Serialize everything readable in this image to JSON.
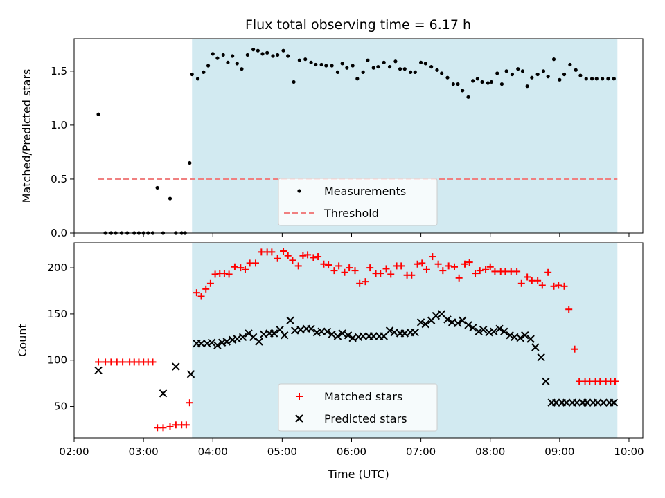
{
  "chart_data": [
    {
      "type": "scatter",
      "title": "Flux total observing time = 6.17 h",
      "ylabel": "Matched/Predicted stars",
      "xlabel": "",
      "ylim": [
        0,
        1.8
      ],
      "yticks": [
        0.0,
        0.5,
        1.0,
        1.5
      ],
      "ytick_labels": [
        "0.0",
        "0.5",
        "1.0",
        "1.5"
      ],
      "xlim": [
        "02:00",
        "10:12"
      ],
      "shaded_region": {
        "start": "03:42",
        "end": "09:50",
        "color": "#add8e6"
      },
      "threshold": {
        "name": "Threshold",
        "value": 0.5,
        "start": "02:21",
        "end": "09:50",
        "color": "#f08080",
        "style": "dashed"
      },
      "legend": {
        "position": "lower-center",
        "entries": [
          {
            "label": "Measurements"
          },
          {
            "label": "Threshold"
          }
        ]
      },
      "series": [
        {
          "name": "Measurements",
          "color": "#000000",
          "marker": "dot",
          "x": [
            "02:21",
            "02:27",
            "02:32",
            "02:36",
            "02:41",
            "02:46",
            "02:52",
            "02:56",
            "03:00",
            "03:04",
            "03:08",
            "03:12",
            "03:17",
            "03:23",
            "03:28",
            "03:33",
            "03:36",
            "03:40",
            "03:42",
            "03:47",
            "03:52",
            "03:56",
            "04:00",
            "04:04",
            "04:09",
            "04:13",
            "04:17",
            "04:21",
            "04:25",
            "04:30",
            "04:35",
            "04:39",
            "04:43",
            "04:47",
            "04:52",
            "04:56",
            "05:01",
            "05:05",
            "05:10",
            "05:15",
            "05:20",
            "05:25",
            "05:29",
            "05:34",
            "05:38",
            "05:43",
            "05:48",
            "05:52",
            "05:56",
            "06:01",
            "06:05",
            "06:10",
            "06:14",
            "06:19",
            "06:23",
            "06:28",
            "06:33",
            "06:38",
            "06:42",
            "06:46",
            "06:51",
            "06:55",
            "07:00",
            "07:04",
            "07:09",
            "07:14",
            "07:18",
            "07:23",
            "07:28",
            "07:32",
            "07:36",
            "07:41",
            "07:45",
            "07:49",
            "07:53",
            "07:58",
            "08:01",
            "08:06",
            "08:10",
            "08:14",
            "08:19",
            "08:24",
            "08:28",
            "08:32",
            "08:36",
            "08:41",
            "08:46",
            "08:50",
            "08:55",
            "09:00",
            "09:04",
            "09:09",
            "09:14",
            "09:18",
            "09:23",
            "09:28",
            "09:32",
            "09:37",
            "09:42",
            "09:47"
          ],
          "y": [
            1.1,
            0.0,
            0.0,
            0.0,
            0.0,
            0.0,
            0.0,
            0.0,
            0.0,
            0.0,
            0.0,
            0.42,
            0.0,
            0.32,
            0.0,
            0.0,
            0.0,
            0.65,
            1.47,
            1.43,
            1.49,
            1.55,
            1.66,
            1.62,
            1.65,
            1.58,
            1.64,
            1.57,
            1.52,
            1.65,
            1.7,
            1.69,
            1.66,
            1.67,
            1.64,
            1.65,
            1.69,
            1.64,
            1.4,
            1.6,
            1.61,
            1.58,
            1.56,
            1.56,
            1.55,
            1.55,
            1.49,
            1.57,
            1.53,
            1.55,
            1.43,
            1.49,
            1.6,
            1.53,
            1.54,
            1.58,
            1.54,
            1.59,
            1.52,
            1.52,
            1.49,
            1.49,
            1.58,
            1.57,
            1.54,
            1.51,
            1.48,
            1.44,
            1.38,
            1.38,
            1.32,
            1.26,
            1.41,
            1.43,
            1.4,
            1.39,
            1.4,
            1.48,
            1.38,
            1.5,
            1.47,
            1.52,
            1.5,
            1.36,
            1.44,
            1.47,
            1.5,
            1.45,
            1.61,
            1.42,
            1.47,
            1.56,
            1.51,
            1.46,
            1.43,
            1.43,
            1.43,
            1.43,
            1.43,
            1.43
          ]
        }
      ]
    },
    {
      "type": "scatter",
      "title": "",
      "ylabel": "Count",
      "xlabel": "Time (UTC)",
      "ylim": [
        16,
        227
      ],
      "yticks": [
        50,
        100,
        150,
        200
      ],
      "ytick_labels": [
        "50",
        "100",
        "150",
        "200"
      ],
      "xlim": [
        "02:00",
        "10:12"
      ],
      "xticks": [
        "02:00",
        "03:00",
        "04:00",
        "05:00",
        "06:00",
        "07:00",
        "08:00",
        "09:00",
        "10:00"
      ],
      "xtick_labels": [
        "02:00",
        "03:00",
        "04:00",
        "05:00",
        "06:00",
        "07:00",
        "08:00",
        "09:00",
        "10:00"
      ],
      "shaded_region": {
        "start": "03:42",
        "end": "09:50",
        "color": "#add8e6"
      },
      "legend": {
        "position": "lower-center",
        "entries": [
          {
            "label": "Matched stars"
          },
          {
            "label": "Predicted stars"
          }
        ]
      },
      "series": [
        {
          "name": "Matched stars",
          "color": "#ff0000",
          "marker": "plus",
          "x": [
            "02:21",
            "02:27",
            "02:32",
            "02:37",
            "02:42",
            "02:48",
            "02:52",
            "02:56",
            "03:00",
            "03:04",
            "03:08",
            "03:12",
            "03:17",
            "03:23",
            "03:28",
            "03:33",
            "03:37",
            "03:40",
            "03:46",
            "03:50",
            "03:54",
            "03:58",
            "04:02",
            "04:06",
            "04:10",
            "04:14",
            "04:19",
            "04:24",
            "04:28",
            "04:32",
            "04:37",
            "04:42",
            "04:47",
            "04:51",
            "04:56",
            "05:01",
            "05:05",
            "05:09",
            "05:14",
            "05:18",
            "05:22",
            "05:27",
            "05:31",
            "05:36",
            "05:40",
            "05:45",
            "05:49",
            "05:54",
            "05:58",
            "06:03",
            "06:07",
            "06:12",
            "06:16",
            "06:21",
            "06:25",
            "06:30",
            "06:34",
            "06:39",
            "06:43",
            "06:48",
            "06:52",
            "06:57",
            "07:01",
            "07:05",
            "07:10",
            "07:15",
            "07:19",
            "07:24",
            "07:29",
            "07:33",
            "07:38",
            "07:42",
            "07:47",
            "07:51",
            "07:56",
            "08:00",
            "08:04",
            "08:09",
            "08:13",
            "08:18",
            "08:23",
            "08:27",
            "08:32",
            "08:36",
            "08:41",
            "08:45",
            "08:50",
            "08:55",
            "08:59",
            "09:04",
            "09:08",
            "09:13",
            "09:17",
            "09:22",
            "09:26",
            "09:31",
            "09:35",
            "09:40",
            "09:44",
            "09:48"
          ],
          "y": [
            98,
            98,
            98,
            98,
            98,
            98,
            98,
            98,
            98,
            98,
            98,
            27,
            27,
            28,
            30,
            30,
            30,
            54,
            173,
            169,
            177,
            183,
            193,
            194,
            194,
            193,
            201,
            200,
            198,
            205,
            205,
            217,
            217,
            217,
            210,
            218,
            213,
            208,
            202,
            213,
            214,
            211,
            212,
            204,
            203,
            197,
            202,
            195,
            200,
            197,
            183,
            185,
            200,
            194,
            194,
            199,
            193,
            202,
            202,
            192,
            192,
            204,
            205,
            198,
            212,
            204,
            197,
            202,
            201,
            189,
            204,
            206,
            194,
            197,
            198,
            201,
            196,
            196,
            196,
            196,
            196,
            183,
            190,
            186,
            186,
            181,
            195,
            180,
            181,
            180,
            155,
            112,
            77,
            77,
            77,
            77,
            77,
            77,
            77,
            77
          ],
          "note_skip": true
        },
        {
          "name": "Predicted stars",
          "color": "#000000",
          "marker": "x",
          "x": [
            "02:21",
            "03:17",
            "03:28",
            "03:41",
            "03:46",
            "03:50",
            "03:55",
            "03:59",
            "04:04",
            "04:08",
            "04:12",
            "04:17",
            "04:21",
            "04:26",
            "04:31",
            "04:35",
            "04:40",
            "04:44",
            "04:49",
            "04:53",
            "04:58",
            "05:02",
            "05:07",
            "05:11",
            "05:16",
            "05:21",
            "05:25",
            "05:30",
            "05:34",
            "05:39",
            "05:43",
            "05:48",
            "05:52",
            "05:57",
            "06:01",
            "06:06",
            "06:10",
            "06:15",
            "06:19",
            "06:24",
            "06:28",
            "06:33",
            "06:37",
            "06:42",
            "06:46",
            "06:51",
            "06:55",
            "07:00",
            "07:04",
            "07:09",
            "07:13",
            "07:18",
            "07:23",
            "07:27",
            "07:32",
            "07:36",
            "07:41",
            "07:45",
            "07:50",
            "07:54",
            "07:59",
            "08:03",
            "08:08",
            "08:12",
            "08:17",
            "08:21",
            "08:26",
            "08:30",
            "08:35",
            "08:39",
            "08:44",
            "08:48",
            "08:53",
            "08:57",
            "09:02",
            "09:06",
            "09:11",
            "09:15",
            "09:20",
            "09:24",
            "09:29",
            "09:33",
            "09:38",
            "09:43",
            "09:47"
          ],
          "y": [
            89,
            64,
            93,
            85,
            118,
            118,
            118,
            119,
            116,
            119,
            120,
            122,
            123,
            125,
            129,
            125,
            120,
            128,
            129,
            129,
            133,
            127,
            143,
            132,
            133,
            134,
            134,
            130,
            131,
            131,
            128,
            126,
            129,
            127,
            124,
            125,
            126,
            126,
            126,
            126,
            126,
            132,
            130,
            129,
            129,
            130,
            130,
            141,
            139,
            143,
            148,
            150,
            144,
            141,
            140,
            143,
            138,
            135,
            131,
            133,
            130,
            131,
            134,
            131,
            127,
            125,
            124,
            127,
            123,
            114,
            103,
            77,
            54,
            54,
            54,
            54,
            54,
            54,
            54,
            54,
            54,
            54,
            54,
            54,
            54
          ],
          "note_skip": true
        }
      ]
    }
  ]
}
